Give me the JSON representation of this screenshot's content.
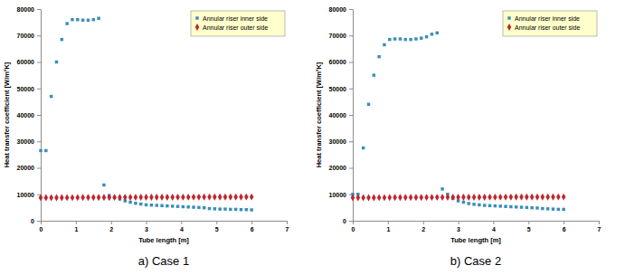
{
  "chart_data": [
    {
      "type": "scatter",
      "title": "a) Case 1",
      "x_label": "Tube length [m]",
      "y_label": "Heat transfer coefficient [W/m²K]",
      "x": [
        0,
        0.15,
        0.3,
        0.45,
        0.6,
        0.75,
        0.9,
        1.05,
        1.2,
        1.35,
        1.5,
        1.65,
        1.8,
        1.95,
        2.1,
        2.25,
        2.4,
        2.55,
        2.7,
        2.85,
        3.0,
        3.15,
        3.3,
        3.45,
        3.6,
        3.75,
        3.9,
        4.05,
        4.2,
        4.35,
        4.5,
        4.65,
        4.8,
        4.95,
        5.1,
        5.25,
        5.4,
        5.55,
        5.7,
        5.85,
        6.0
      ],
      "series": [
        {
          "name": "Annular riser inner side",
          "color": "#3a8fb7",
          "marker": "square",
          "values": [
            26500,
            26500,
            47000,
            60000,
            68500,
            74500,
            76000,
            76000,
            75800,
            75800,
            76000,
            76500,
            13500,
            9500,
            8800,
            8200,
            7500,
            7000,
            6600,
            6300,
            6000,
            5900,
            5800,
            5700,
            5600,
            5500,
            5400,
            5300,
            5200,
            5100,
            5000,
            4900,
            4600,
            4500,
            4400,
            4400,
            4300,
            4300,
            4200,
            4200,
            4100
          ]
        },
        {
          "name": "Annular riser outer side",
          "color": "#c0262d",
          "marker": "diamond",
          "values": [
            8700,
            8700,
            8720,
            8730,
            8740,
            8750,
            8760,
            8770,
            8780,
            8790,
            8800,
            8800,
            8810,
            8820,
            8830,
            8840,
            8850,
            8850,
            8860,
            8870,
            8880,
            8880,
            8890,
            8900,
            8900,
            8910,
            8920,
            8920,
            8930,
            8940,
            8940,
            8950,
            8950,
            8960,
            8970,
            8970,
            8980,
            8980,
            8990,
            9000,
            9000
          ]
        }
      ],
      "xlim": [
        0,
        7
      ],
      "xticks": [
        0,
        1,
        2,
        3,
        4,
        5,
        6,
        7
      ],
      "ylim": [
        0,
        80000
      ],
      "yticks": [
        0,
        10000,
        20000,
        30000,
        40000,
        50000,
        60000,
        70000,
        80000
      ],
      "grid": false,
      "legend": "upper right"
    },
    {
      "type": "scatter",
      "title": "b) Case 2",
      "x_label": "Tube length [m]",
      "y_label": "Heat transfer coefficient [W/m²K]",
      "x": [
        0,
        0.15,
        0.3,
        0.45,
        0.6,
        0.75,
        0.9,
        1.05,
        1.2,
        1.35,
        1.5,
        1.65,
        1.8,
        1.95,
        2.1,
        2.25,
        2.4,
        2.55,
        2.7,
        2.85,
        3.0,
        3.15,
        3.3,
        3.45,
        3.6,
        3.75,
        3.9,
        4.05,
        4.2,
        4.35,
        4.5,
        4.65,
        4.8,
        4.95,
        5.1,
        5.25,
        5.4,
        5.55,
        5.7,
        5.85,
        6.0
      ],
      "series": [
        {
          "name": "Annular riser inner side",
          "color": "#3a8fb7",
          "marker": "square",
          "values": [
            10000,
            10000,
            27500,
            44000,
            55000,
            62000,
            66500,
            68500,
            68700,
            68700,
            68500,
            68500,
            68700,
            69000,
            69500,
            70500,
            71000,
            12000,
            10000,
            8500,
            7500,
            7000,
            6500,
            6200,
            6000,
            5800,
            5700,
            5600,
            5500,
            5400,
            5300,
            5200,
            5100,
            5000,
            4900,
            4800,
            4600,
            4500,
            4400,
            4300,
            4300
          ]
        },
        {
          "name": "Annular riser outer side",
          "color": "#c0262d",
          "marker": "diamond",
          "values": [
            8700,
            8700,
            8720,
            8730,
            8740,
            8750,
            8760,
            8770,
            8780,
            8790,
            8800,
            8800,
            8810,
            8820,
            8830,
            8840,
            8850,
            8850,
            8860,
            8870,
            8880,
            8880,
            8890,
            8900,
            8900,
            8910,
            8920,
            8920,
            8930,
            8940,
            8940,
            8950,
            8950,
            8960,
            8970,
            8970,
            8980,
            8980,
            8990,
            9000,
            9000
          ]
        }
      ],
      "xlim": [
        0,
        7
      ],
      "xticks": [
        0,
        1,
        2,
        3,
        4,
        5,
        6,
        7
      ],
      "ylim": [
        0,
        80000
      ],
      "yticks": [
        0,
        10000,
        20000,
        30000,
        40000,
        50000,
        60000,
        70000,
        80000
      ],
      "grid": false,
      "legend": "upper right"
    }
  ]
}
